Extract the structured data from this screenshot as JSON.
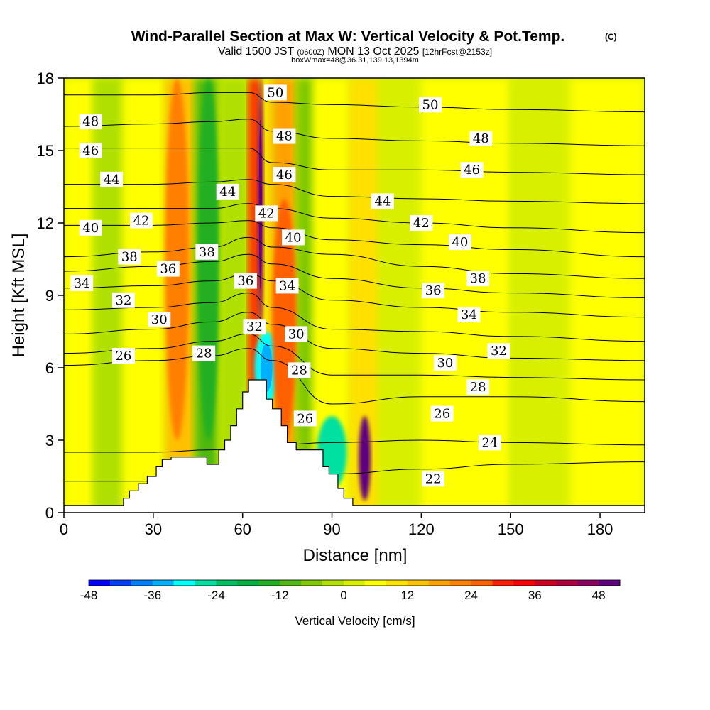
{
  "chart_data": {
    "type": "heatmap",
    "title": "Wind-Parallel Section at Max W: Vertical Velocity & Pot.Temp.",
    "copyright_mark": "(C)",
    "subtitle": {
      "valid_prefix": "Valid 1500 JST",
      "utc": "(0600Z)",
      "date": "MON 13 Oct 2025",
      "forecast": "[12hrFcst@2153z]"
    },
    "box_info": "boxWmax=48@36.31,139.13,1394m",
    "xlabel": "Distance [nm]",
    "ylabel": "Height [Kft MSL]",
    "xlim": [
      0,
      195
    ],
    "ylim": [
      0,
      18
    ],
    "xticks": [
      0,
      30,
      60,
      90,
      120,
      150,
      180
    ],
    "yticks": [
      0,
      3,
      6,
      9,
      12,
      15,
      18
    ],
    "colorbar": {
      "label": "Vertical Velocity [cm/s]",
      "min": -48,
      "max": 48,
      "step": 4,
      "ticks": [
        -48,
        -36,
        -24,
        -12,
        0,
        12,
        24,
        36,
        48
      ],
      "colors": [
        "#0000ff",
        "#0040ff",
        "#0080ff",
        "#00b0ff",
        "#00ffff",
        "#00e0a0",
        "#00c060",
        "#00b040",
        "#20b020",
        "#50b810",
        "#80c800",
        "#b0e000",
        "#d8f000",
        "#ffff00",
        "#ffe000",
        "#ffc000",
        "#ffa000",
        "#ff8000",
        "#ff6000",
        "#ff2000",
        "#ff0000",
        "#d00020",
        "#b00040",
        "#8c0060",
        "#600080"
      ]
    },
    "terrain": [
      [
        0,
        0.3
      ],
      [
        20,
        0.3
      ],
      [
        20,
        0.6
      ],
      [
        22,
        0.6
      ],
      [
        22,
        0.9
      ],
      [
        25,
        0.9
      ],
      [
        25,
        1.2
      ],
      [
        28,
        1.2
      ],
      [
        28,
        1.5
      ],
      [
        31,
        1.5
      ],
      [
        31,
        1.9
      ],
      [
        33,
        1.9
      ],
      [
        33,
        2.2
      ],
      [
        36,
        2.2
      ],
      [
        36,
        2.3
      ],
      [
        48,
        2.3
      ],
      [
        48,
        2.0
      ],
      [
        52,
        2.0
      ],
      [
        52,
        2.6
      ],
      [
        54,
        2.6
      ],
      [
        54,
        3.0
      ],
      [
        56,
        3.0
      ],
      [
        56,
        3.6
      ],
      [
        58,
        3.6
      ],
      [
        58,
        4.3
      ],
      [
        60,
        4.3
      ],
      [
        60,
        5.0
      ],
      [
        62,
        5.0
      ],
      [
        62,
        5.5
      ],
      [
        68,
        5.5
      ],
      [
        68,
        4.7
      ],
      [
        70,
        4.7
      ],
      [
        70,
        4.3
      ],
      [
        73,
        4.3
      ],
      [
        73,
        3.6
      ],
      [
        75,
        3.6
      ],
      [
        75,
        2.9
      ],
      [
        78,
        2.9
      ],
      [
        78,
        2.6
      ],
      [
        87,
        2.6
      ],
      [
        87,
        1.9
      ],
      [
        89,
        1.9
      ],
      [
        89,
        1.6
      ],
      [
        92,
        1.6
      ],
      [
        92,
        1.0
      ],
      [
        94,
        1.0
      ],
      [
        94,
        0.6
      ],
      [
        97,
        0.6
      ],
      [
        97,
        0.3
      ],
      [
        195,
        0.3
      ]
    ],
    "isentropes": [
      {
        "value": 22,
        "y": [
          1.3,
          1.3,
          1.3,
          1.4,
          1.5,
          1.6,
          1.8,
          2.0,
          2.1
        ]
      },
      {
        "value": 24,
        "y": [
          2.5,
          2.5,
          2.6,
          2.7,
          2.8,
          2.9,
          3.0,
          2.9,
          2.8
        ]
      },
      {
        "value": 26,
        "y": [
          6.1,
          6.3,
          6.5,
          6.8,
          6.3,
          4.5,
          4.8,
          4.8,
          4.6
        ]
      },
      {
        "value": 28,
        "y": [
          6.6,
          6.8,
          7.1,
          7.4,
          6.9,
          5.7,
          5.7,
          5.6,
          5.5
        ]
      },
      {
        "value": 30,
        "y": [
          7.4,
          7.6,
          7.9,
          8.3,
          7.8,
          6.8,
          6.6,
          6.4,
          6.3
        ]
      },
      {
        "value": 32,
        "y": [
          8.4,
          8.5,
          8.7,
          9.1,
          8.5,
          7.6,
          7.5,
          7.3,
          7.1
        ]
      },
      {
        "value": 34,
        "y": [
          9.3,
          9.4,
          9.6,
          9.9,
          9.6,
          8.8,
          8.5,
          8.3,
          8.1
        ]
      },
      {
        "value": 36,
        "y": [
          10.0,
          10.2,
          10.4,
          10.7,
          10.3,
          9.7,
          9.3,
          9.1,
          8.9
        ]
      },
      {
        "value": 38,
        "y": [
          10.6,
          10.8,
          11.0,
          11.4,
          11.0,
          10.7,
          10.2,
          9.9,
          9.7
        ]
      },
      {
        "value": 40,
        "y": [
          11.9,
          11.9,
          12.0,
          12.1,
          11.8,
          11.3,
          11.1,
          10.9,
          10.6
        ]
      },
      {
        "value": 42,
        "y": [
          12.6,
          12.6,
          12.6,
          12.8,
          12.6,
          12.2,
          12.0,
          11.8,
          11.6
        ]
      },
      {
        "value": 44,
        "y": [
          13.6,
          13.6,
          13.7,
          13.8,
          13.6,
          13.1,
          13.0,
          12.9,
          12.8
        ]
      },
      {
        "value": 46,
        "y": [
          15.1,
          15.1,
          15.1,
          15.1,
          14.5,
          14.2,
          14.2,
          14.1,
          14.0
        ]
      },
      {
        "value": 48,
        "y": [
          16.0,
          16.1,
          16.2,
          16.3,
          15.8,
          15.5,
          15.4,
          15.3,
          15.2
        ]
      },
      {
        "value": 50,
        "y": [
          17.3,
          17.3,
          17.4,
          17.4,
          17.0,
          16.9,
          16.8,
          16.7,
          16.6
        ]
      }
    ],
    "isentrope_x": [
      0,
      30,
      50,
      62,
      70,
      90,
      120,
      150,
      195
    ],
    "contour_labels": [
      {
        "text": "48",
        "x": 9,
        "y": 16.2
      },
      {
        "text": "46",
        "x": 9,
        "y": 15.0
      },
      {
        "text": "44",
        "x": 16,
        "y": 13.8
      },
      {
        "text": "42",
        "x": 26,
        "y": 12.1
      },
      {
        "text": "40",
        "x": 9,
        "y": 11.8
      },
      {
        "text": "38",
        "x": 22,
        "y": 10.6
      },
      {
        "text": "38",
        "x": 48,
        "y": 10.8
      },
      {
        "text": "36",
        "x": 35,
        "y": 10.1
      },
      {
        "text": "34",
        "x": 6,
        "y": 9.5
      },
      {
        "text": "32",
        "x": 20,
        "y": 8.8
      },
      {
        "text": "30",
        "x": 32,
        "y": 8.0
      },
      {
        "text": "28",
        "x": 47,
        "y": 6.6
      },
      {
        "text": "26",
        "x": 20,
        "y": 6.5
      },
      {
        "text": "50",
        "x": 71,
        "y": 17.4
      },
      {
        "text": "48",
        "x": 74,
        "y": 15.6
      },
      {
        "text": "46",
        "x": 74,
        "y": 14.0
      },
      {
        "text": "44",
        "x": 55,
        "y": 13.3
      },
      {
        "text": "42",
        "x": 68,
        "y": 12.4
      },
      {
        "text": "40",
        "x": 77,
        "y": 11.4
      },
      {
        "text": "36",
        "x": 61,
        "y": 9.6
      },
      {
        "text": "34",
        "x": 75,
        "y": 9.4
      },
      {
        "text": "32",
        "x": 64,
        "y": 7.7
      },
      {
        "text": "30",
        "x": 78,
        "y": 7.4
      },
      {
        "text": "28",
        "x": 79,
        "y": 5.9
      },
      {
        "text": "26",
        "x": 81,
        "y": 3.9
      },
      {
        "text": "50",
        "x": 123,
        "y": 16.9
      },
      {
        "text": "48",
        "x": 140,
        "y": 15.5
      },
      {
        "text": "46",
        "x": 137,
        "y": 14.2
      },
      {
        "text": "44",
        "x": 107,
        "y": 12.9
      },
      {
        "text": "42",
        "x": 120,
        "y": 12.0
      },
      {
        "text": "40",
        "x": 133,
        "y": 11.2
      },
      {
        "text": "38",
        "x": 139,
        "y": 9.7
      },
      {
        "text": "36",
        "x": 124,
        "y": 9.2
      },
      {
        "text": "34",
        "x": 136,
        "y": 8.2
      },
      {
        "text": "32",
        "x": 146,
        "y": 6.7
      },
      {
        "text": "30",
        "x": 128,
        "y": 6.2
      },
      {
        "text": "28",
        "x": 139,
        "y": 5.2
      },
      {
        "text": "26",
        "x": 127,
        "y": 4.1
      },
      {
        "text": "24",
        "x": 143,
        "y": 2.9
      },
      {
        "text": "22",
        "x": 124,
        "y": 1.4
      }
    ],
    "velocity_features": [
      {
        "name": "upper-updraft-core",
        "w": 46,
        "x": [
          65,
          67
        ],
        "y": [
          7.5,
          18
        ]
      },
      {
        "name": "lee-downdraft",
        "w": -32,
        "x": [
          64,
          72
        ],
        "y": [
          4.5,
          7.5
        ]
      },
      {
        "name": "lee-updraft",
        "w": 24,
        "x": [
          70,
          78
        ],
        "y": [
          3,
          13
        ]
      },
      {
        "name": "surface-updraft",
        "w": 48,
        "x": [
          99,
          103
        ],
        "y": [
          0.5,
          4
        ]
      },
      {
        "name": "cyan-downdraft",
        "w": -28,
        "x": [
          85,
          95
        ],
        "y": [
          1,
          4
        ]
      },
      {
        "name": "western-updraft",
        "w": 20,
        "x": [
          34,
          42
        ],
        "y": [
          3,
          18
        ]
      },
      {
        "name": "western-downdraft",
        "w": -16,
        "x": [
          45,
          52
        ],
        "y": [
          3,
          18
        ]
      }
    ]
  }
}
